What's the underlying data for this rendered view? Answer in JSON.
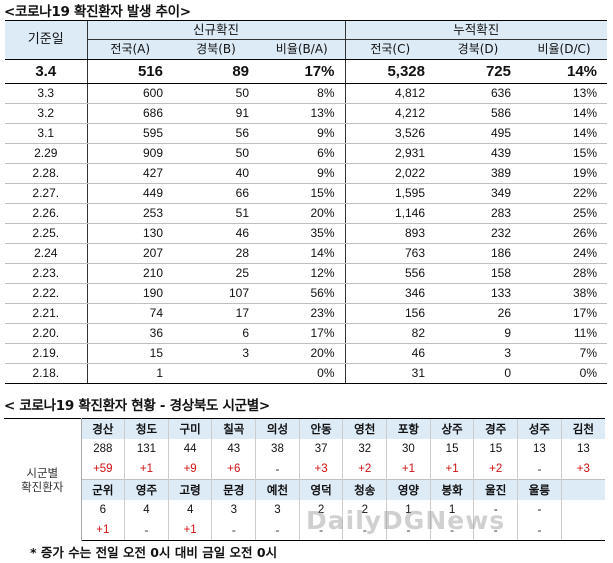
{
  "table1": {
    "title": "<코로나19 확진환자 발생 추이>",
    "header": {
      "basis": "기준일",
      "new_group": "신규확진",
      "cumulative_group": "누적확진",
      "sub": [
        "전국(A)",
        "경북(B)",
        "비율(B/A)",
        "전국(C)",
        "경북(D)",
        "비율(D/C)"
      ]
    },
    "rows": [
      [
        "3.4",
        "516",
        "89",
        "17%",
        "5,328",
        "725",
        "14%"
      ],
      [
        "3.3",
        "600",
        "50",
        "8%",
        "4,812",
        "636",
        "13%"
      ],
      [
        "3.2",
        "686",
        "91",
        "13%",
        "4,212",
        "586",
        "14%"
      ],
      [
        "3.1",
        "595",
        "56",
        "9%",
        "3,526",
        "495",
        "14%"
      ],
      [
        "2.29",
        "909",
        "50",
        "6%",
        "2,931",
        "439",
        "15%"
      ],
      [
        "2.28.",
        "427",
        "40",
        "9%",
        "2,022",
        "389",
        "19%"
      ],
      [
        "2.27.",
        "449",
        "66",
        "15%",
        "1,595",
        "349",
        "22%"
      ],
      [
        "2.26.",
        "253",
        "51",
        "20%",
        "1,146",
        "283",
        "25%"
      ],
      [
        "2.25.",
        "130",
        "46",
        "35%",
        "893",
        "232",
        "26%"
      ],
      [
        "2.24",
        "207",
        "28",
        "14%",
        "763",
        "186",
        "24%"
      ],
      [
        "2.23.",
        "210",
        "25",
        "12%",
        "556",
        "158",
        "28%"
      ],
      [
        "2.22.",
        "190",
        "107",
        "56%",
        "346",
        "133",
        "38%"
      ],
      [
        "2.21.",
        "74",
        "17",
        "23%",
        "156",
        "26",
        "17%"
      ],
      [
        "2.20.",
        "36",
        "6",
        "17%",
        "82",
        "9",
        "11%"
      ],
      [
        "2.19.",
        "15",
        "3",
        "20%",
        "46",
        "3",
        "7%"
      ],
      [
        "2.18.",
        "1",
        "",
        "0%",
        "31",
        "0",
        "0%"
      ]
    ]
  },
  "table2": {
    "title": "< 코로나19 확진환자 현황 - 경상북도 시군별>",
    "row_label": "시군별\n확진환자",
    "block1": {
      "names": [
        "경산",
        "청도",
        "구미",
        "칠곡",
        "의성",
        "안동",
        "영천",
        "포항",
        "상주",
        "경주",
        "성주",
        "김천"
      ],
      "counts": [
        "288",
        "131",
        "44",
        "43",
        "38",
        "37",
        "32",
        "30",
        "15",
        "15",
        "13",
        "13"
      ],
      "increments": [
        "+59",
        "+1",
        "+9",
        "+6",
        "-",
        "+3",
        "+2",
        "+1",
        "+1",
        "+2",
        "-",
        "+3"
      ]
    },
    "block2": {
      "names": [
        "군위",
        "영주",
        "고령",
        "문경",
        "예천",
        "영덕",
        "청송",
        "영양",
        "봉화",
        "울진",
        "울릉",
        ""
      ],
      "counts": [
        "6",
        "4",
        "4",
        "3",
        "3",
        "2",
        "2",
        "1",
        "1",
        "-",
        "-",
        ""
      ],
      "increments": [
        "+1",
        "-",
        "+1",
        "-",
        "-",
        "-",
        "-",
        "-",
        "-",
        "-",
        "-",
        ""
      ]
    }
  },
  "note": "* 증가 수는 전일 오전 0시 대비 금일 오전 0시",
  "watermark": "DailyDGNews",
  "colors": {
    "header_bg": "#ddebf7",
    "increment": "#d01010"
  }
}
